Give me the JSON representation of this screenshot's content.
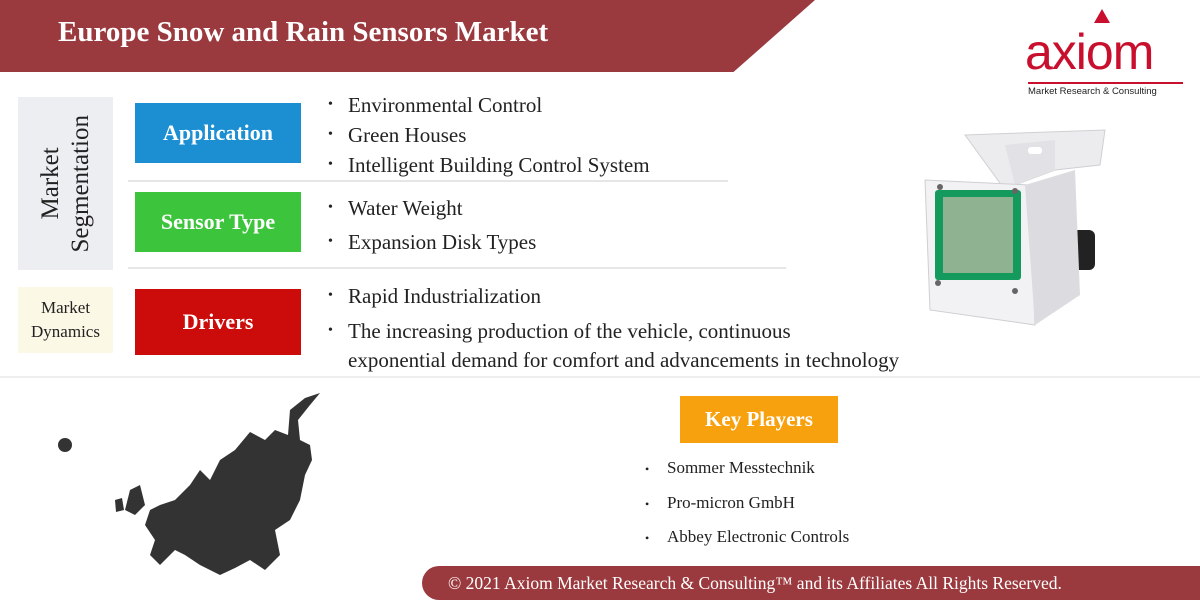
{
  "header": {
    "title": "Europe Snow and Rain Sensors Market"
  },
  "logo": {
    "word": "axiom",
    "tagline": "Market Research & Consulting"
  },
  "segmentation": {
    "label": "Market Segmentation",
    "label_line1": "Market",
    "label_line2": "Segmentation",
    "categories": [
      {
        "name": "Application",
        "color": "#1b8fd2",
        "items": [
          "Environmental Control",
          "Green Houses",
          "Intelligent Building Control System"
        ]
      },
      {
        "name": "Sensor Type",
        "color": "#3cc53c",
        "items": [
          "Water Weight",
          "Expansion Disk Types"
        ]
      }
    ]
  },
  "dynamics": {
    "label_line1": "Market",
    "label_line2": "Dynamics",
    "category": {
      "name": "Drivers",
      "color": "#cc0b0b",
      "items": [
        "Rapid Industrialization",
        "The increasing production of the vehicle, continuous",
        "exponential demand for comfort and advancements in technology"
      ]
    }
  },
  "key_players": {
    "title": "Key Players",
    "color": "#f7a10f",
    "items": [
      "Sommer Messtechnik",
      "Pro-micron GmbH",
      "Abbey Electronic Controls"
    ]
  },
  "bullet": "•",
  "footer": {
    "text": "© 2021 Axiom Market Research & Consulting™ and its Affiliates All Rights Reserved."
  },
  "colors": {
    "brand": "#9b3a3e",
    "logo": "#c8102e"
  }
}
